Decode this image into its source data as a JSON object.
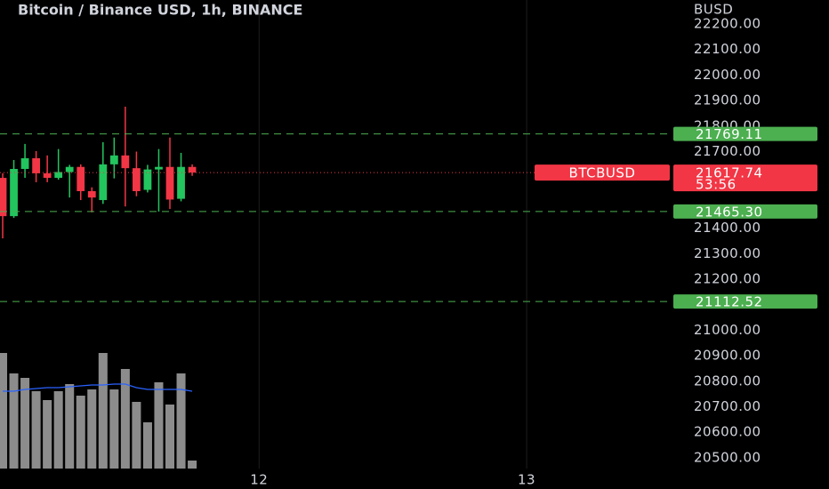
{
  "chart_data": {
    "type": "candlestick",
    "title": "Bitcoin / Binance USD, 1h, BINANCE",
    "currency": "BUSD",
    "x": [
      0,
      1,
      2,
      3,
      4,
      5,
      6,
      7,
      8,
      9,
      10,
      11,
      12,
      13,
      14,
      15,
      16,
      17
    ],
    "open": [
      21597,
      21447,
      21632,
      21674,
      21615,
      21597,
      21620,
      21640,
      21545,
      21510,
      21650,
      21685,
      21635,
      21550,
      21630,
      21640,
      21515,
      21640
    ],
    "high": [
      21615,
      21667,
      21730,
      21702,
      21685,
      21710,
      21648,
      21650,
      21560,
      21737,
      21755,
      21876,
      21700,
      21648,
      21710,
      21755,
      21695,
      21650
    ],
    "low": [
      21360,
      21440,
      21597,
      21580,
      21580,
      21590,
      21520,
      21510,
      21462,
      21495,
      21595,
      21485,
      21525,
      21540,
      21465,
      21475,
      21505,
      21605
    ],
    "close": [
      21447,
      21632,
      21674,
      21615,
      21597,
      21620,
      21640,
      21545,
      21520,
      21650,
      21685,
      21635,
      21545,
      21630,
      21640,
      21512,
      21640,
      21617.74
    ],
    "up_color": "#22c55e",
    "down_color": "#f23645",
    "volume": [
      130,
      107,
      102,
      87,
      77,
      87,
      95,
      82,
      89,
      130,
      89,
      112,
      75,
      52,
      97,
      72,
      107,
      9
    ],
    "volume_ma": [
      87,
      87,
      89,
      90,
      91,
      91,
      92,
      93,
      94,
      94,
      95,
      95,
      91,
      89,
      89,
      89,
      89,
      87
    ],
    "volume_color": "#8c8c8c",
    "volume_ma_color": "#2962ff",
    "volume_lim": [
      0,
      240
    ],
    "xlim": [
      -0.24,
      60
    ],
    "xticks": [
      {
        "value": 23,
        "label": "12"
      },
      {
        "value": 47,
        "label": "13"
      }
    ],
    "ylim": [
      20458,
      22294
    ],
    "yticks": [
      {
        "value": 22200,
        "label": "22200.00"
      },
      {
        "value": 22100,
        "label": "22100.00"
      },
      {
        "value": 22000,
        "label": "22000.00"
      },
      {
        "value": 21900,
        "label": "21900.00"
      },
      {
        "value": 21800,
        "label": "21800.00"
      },
      {
        "value": 21700,
        "label": "21700.00"
      },
      {
        "value": 21400,
        "label": "21400.00"
      },
      {
        "value": 21300,
        "label": "21300.00"
      },
      {
        "value": 21200,
        "label": "21200.00"
      },
      {
        "value": 21000,
        "label": "21000.00"
      },
      {
        "value": 20900,
        "label": "20900.00"
      },
      {
        "value": 20800,
        "label": "20800.00"
      },
      {
        "value": 20700,
        "label": "20700.00"
      },
      {
        "value": 20600,
        "label": "20600.00"
      },
      {
        "value": 20500,
        "label": "20500.00"
      }
    ],
    "grid": "vertical",
    "levels": {
      "values": [
        21769.11,
        21465.3,
        21112.52
      ],
      "value_labels": [
        "21769.11",
        "21465.30",
        "21112.52"
      ],
      "color": "#4caf50"
    },
    "last": {
      "name": "BTCBUSD",
      "value": 21617.74,
      "countdown": "53:56",
      "color": "#f23645"
    }
  }
}
